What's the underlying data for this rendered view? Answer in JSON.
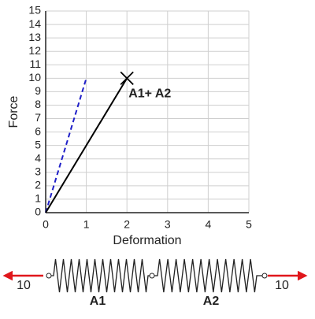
{
  "chart_data": {
    "type": "line",
    "xlabel": "Deformation",
    "ylabel": "Force",
    "xlim": [
      0,
      5
    ],
    "xticks": [
      0,
      1,
      2,
      3,
      4,
      5
    ],
    "ylim": [
      0,
      15
    ],
    "yticks": [
      0,
      1,
      2,
      3,
      4,
      5,
      6,
      7,
      8,
      9,
      10,
      11,
      12,
      13,
      14,
      15
    ],
    "grid": true,
    "series": [
      {
        "color": "#1f1fc8",
        "dashed": true,
        "x": [
          0,
          1
        ],
        "values": [
          0,
          10
        ]
      },
      {
        "color": "#000000",
        "dashed": false,
        "x": [
          0,
          2
        ],
        "values": [
          0,
          10
        ],
        "end_marker": "x"
      }
    ],
    "annotations": [
      {
        "text": "A1+ A2",
        "x": 2,
        "y": 10
      }
    ]
  },
  "diagram": {
    "left_force": "10",
    "springs": [
      "A1",
      "A2"
    ],
    "right_force": "10"
  }
}
